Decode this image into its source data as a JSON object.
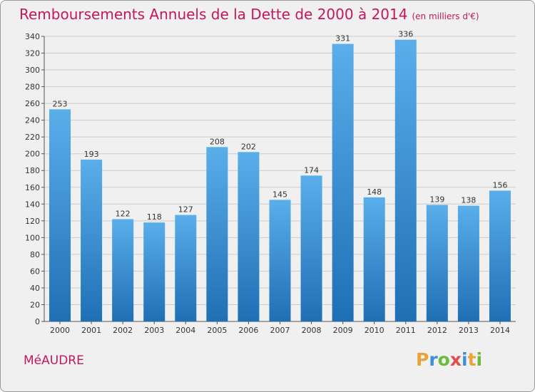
{
  "title": "Remboursements Annuels de la Dette de 2000 à 2014",
  "subtitle": "(en milliers d'€)",
  "commune": "MéAUDRE",
  "logo": {
    "letters": [
      "P",
      "r",
      "o",
      "x",
      "i",
      "t",
      "i"
    ],
    "colors": [
      "#e8a33c",
      "#3f8fd6",
      "#6dbb3c",
      "#e34c4c",
      "#3f8fd6",
      "#e8a33c",
      "#6dbb3c"
    ]
  },
  "colors": {
    "title": "#c2185b",
    "bar_top": "#5aaeea",
    "bar_bottom": "#1f6fb5",
    "grid": "#cccccc"
  },
  "chart_data": {
    "type": "bar",
    "categories": [
      "2000",
      "2001",
      "2002",
      "2003",
      "2004",
      "2005",
      "2006",
      "2007",
      "2008",
      "2009",
      "2010",
      "2011",
      "2012",
      "2013",
      "2014"
    ],
    "values": [
      253,
      193,
      122,
      118,
      127,
      208,
      202,
      145,
      174,
      331,
      148,
      336,
      139,
      138,
      156
    ],
    "ylim": [
      0,
      340
    ],
    "yticks": [
      0,
      20,
      40,
      60,
      80,
      100,
      120,
      140,
      160,
      180,
      200,
      220,
      240,
      260,
      280,
      300,
      320,
      340
    ],
    "grid": true,
    "data_labels": true
  }
}
